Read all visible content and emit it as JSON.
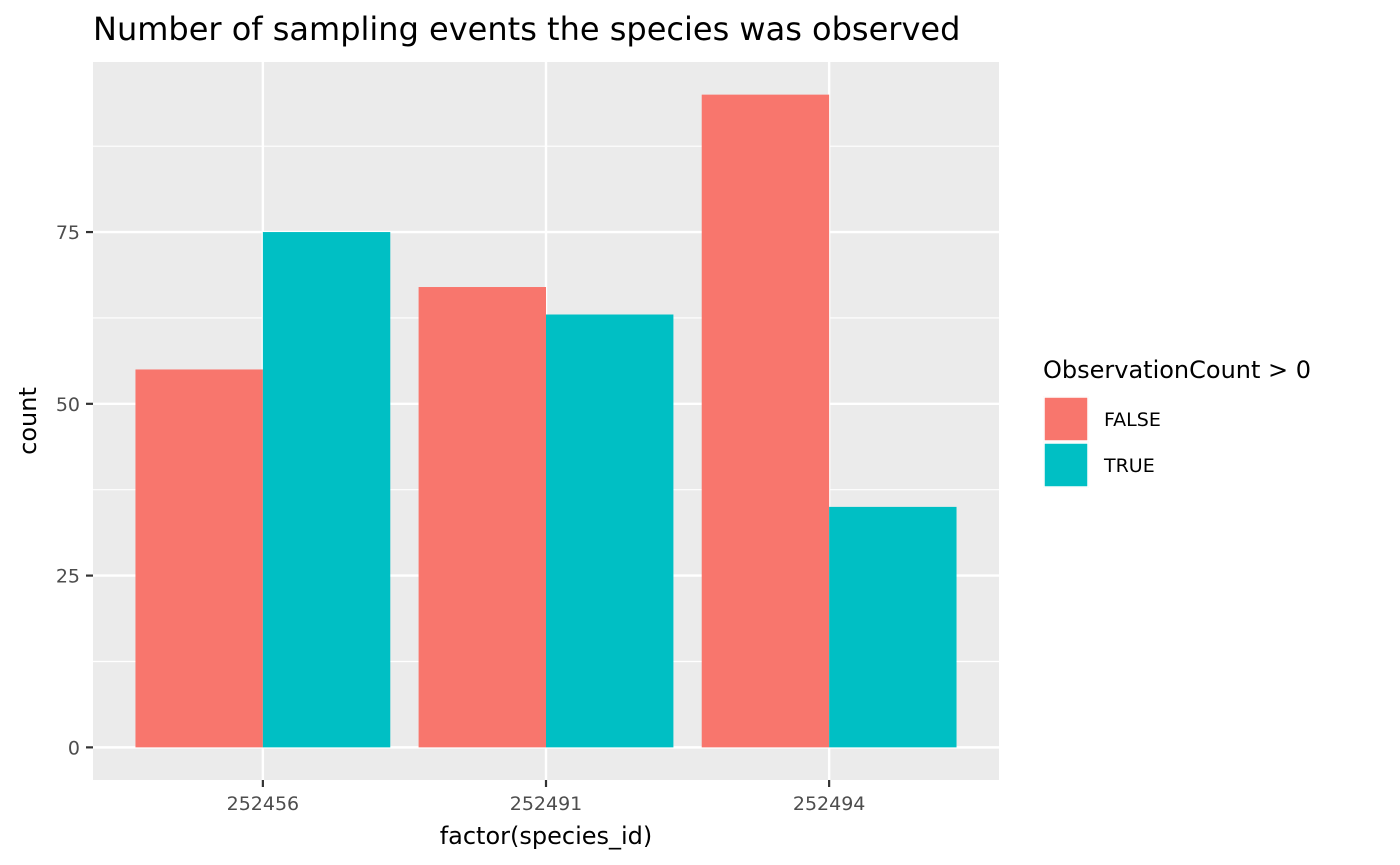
{
  "chart_data": {
    "type": "bar",
    "title": "Number of sampling events the species was observed",
    "xlabel": "factor(species_id)",
    "ylabel": "count",
    "categories": [
      "252456",
      "252491",
      "252494"
    ],
    "series": [
      {
        "name": "FALSE",
        "color": "#F8766D",
        "values": [
          55,
          67,
          95
        ]
      },
      {
        "name": "TRUE",
        "color": "#00BFC4",
        "values": [
          75,
          63,
          35
        ]
      }
    ],
    "ylim": [
      -4.75,
      99.75
    ],
    "yticks": [
      0,
      25,
      50,
      75
    ],
    "yminor": [
      12.5,
      37.5,
      62.5,
      87.5
    ],
    "legend": {
      "title": "ObservationCount > 0",
      "position": "right"
    },
    "panel_background": "#EBEBEB",
    "grid_color": "#FFFFFF",
    "grid": true
  }
}
